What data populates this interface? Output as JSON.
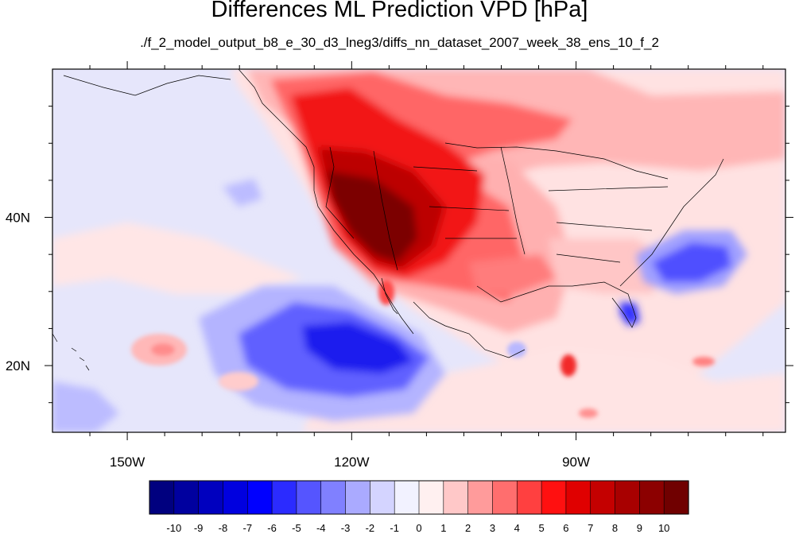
{
  "title": "Differences ML Prediction VPD [hPa]",
  "subtitle": "./f_2_model_output_b8_e_30_d3_lneg3/diffs_nn_dataset_2007_week_38_ens_10_f_2",
  "map": {
    "projection": "cylindrical equidistant",
    "lon_range": [
      -160,
      -62
    ],
    "lat_range": [
      11,
      60
    ],
    "lon_ticks": [
      {
        "lon": -150,
        "label": "150W"
      },
      {
        "lon": -120,
        "label": "120W"
      },
      {
        "lon": -90,
        "label": "90W"
      }
    ],
    "lat_ticks": [
      {
        "lat": 40,
        "label": "40N"
      },
      {
        "lat": 20,
        "label": "20N"
      }
    ],
    "variable": "VPD difference (hPa)"
  },
  "colorbar": {
    "labels": [
      "-10",
      "-9",
      "-8",
      "-7",
      "-6",
      "-5",
      "-4",
      "-3",
      "-2",
      "-1",
      "0",
      "1",
      "2",
      "3",
      "4",
      "5",
      "6",
      "7",
      "8",
      "9",
      "10"
    ],
    "colors": [
      "#00007f",
      "#00009f",
      "#0000bf",
      "#0000df",
      "#0000ff",
      "#2b2bff",
      "#5555ff",
      "#8080ff",
      "#aaaaff",
      "#d4d4ff",
      "#f2f2ff",
      "#fff0f0",
      "#ffc8c8",
      "#ff9b9b",
      "#ff6e6e",
      "#ff4040",
      "#ff1010",
      "#e00000",
      "#c40000",
      "#a80000",
      "#8c0000",
      "#700000"
    ]
  },
  "palette": {
    "neg_strong": "#0000df",
    "neg_mid": "#5555ff",
    "neg_light": "#aaaaff",
    "neg_faint": "#e2e2ff",
    "pos_faint": "#ffe4e4",
    "pos_light": "#ffb4b4",
    "pos_mid": "#ff6464",
    "pos_strong": "#f01010",
    "pos_vstrong": "#b80000",
    "pos_max": "#7a0000"
  }
}
